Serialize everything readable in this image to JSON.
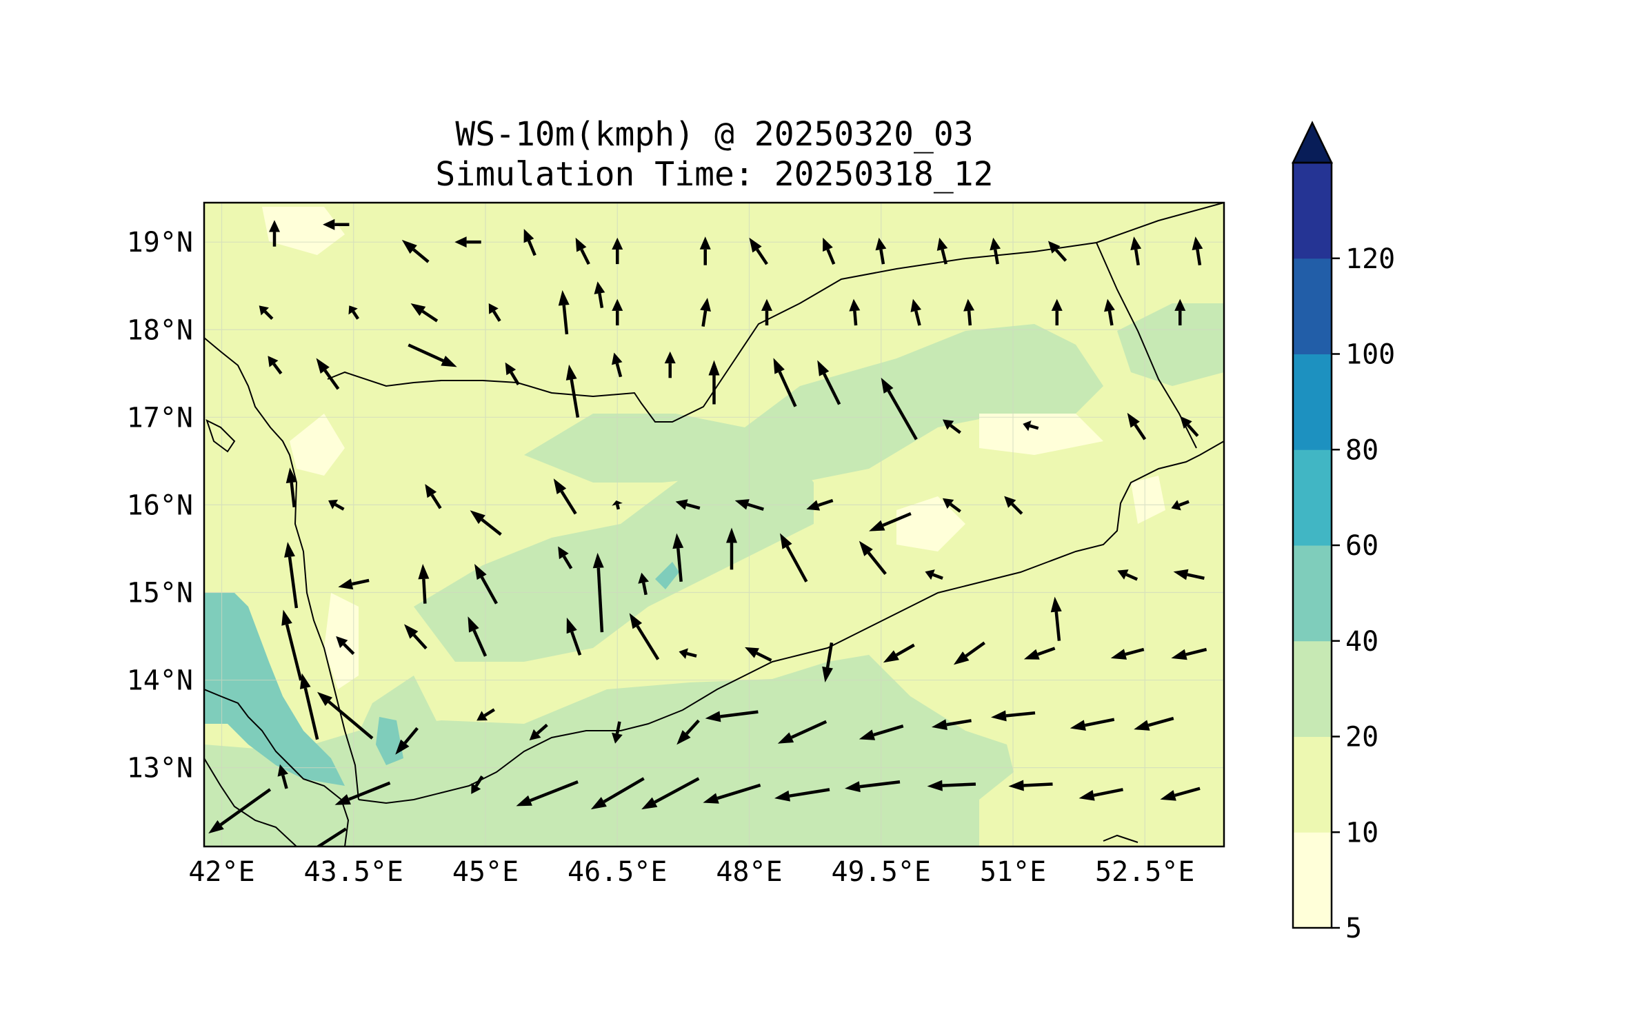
{
  "title": {
    "line1": "WS-10m(kmph) @ 20250320_03",
    "line2": "Simulation Time: 20250318_12"
  },
  "map": {
    "lon_range": [
      41.8,
      53.4
    ],
    "lat_range": [
      12.1,
      19.45
    ],
    "lon_ticks": [
      {
        "value": 42.0,
        "label": "42°E"
      },
      {
        "value": 43.5,
        "label": "43.5°E"
      },
      {
        "value": 45.0,
        "label": "45°E"
      },
      {
        "value": 46.5,
        "label": "46.5°E"
      },
      {
        "value": 48.0,
        "label": "48°E"
      },
      {
        "value": 49.5,
        "label": "49.5°E"
      },
      {
        "value": 51.0,
        "label": "51°E"
      },
      {
        "value": 52.5,
        "label": "52.5°E"
      }
    ],
    "lat_ticks": [
      {
        "value": 19,
        "label": "19°N"
      },
      {
        "value": 18,
        "label": "18°N"
      },
      {
        "value": 17,
        "label": "17°N"
      },
      {
        "value": 16,
        "label": "16°N"
      },
      {
        "value": 15,
        "label": "15°N"
      },
      {
        "value": 14,
        "label": "14°N"
      },
      {
        "value": 13,
        "label": "13°N"
      }
    ],
    "wind_vectors_kmph": [
      [
        42.6,
        19.1,
        0,
        12
      ],
      [
        43.3,
        19.2,
        -12,
        0
      ],
      [
        44.2,
        18.9,
        -12,
        10
      ],
      [
        44.8,
        19.0,
        -12,
        0
      ],
      [
        45.5,
        19.0,
        -5,
        12
      ],
      [
        46.1,
        18.9,
        -6,
        12
      ],
      [
        46.5,
        18.9,
        0,
        12
      ],
      [
        47.5,
        18.9,
        0,
        13
      ],
      [
        48.1,
        18.9,
        -8,
        12
      ],
      [
        48.9,
        18.9,
        -5,
        12
      ],
      [
        49.5,
        18.9,
        -2,
        12
      ],
      [
        50.2,
        18.9,
        -3,
        12
      ],
      [
        50.8,
        18.9,
        -2,
        12
      ],
      [
        51.5,
        18.9,
        -8,
        9
      ],
      [
        52.4,
        18.9,
        -2,
        13
      ],
      [
        53.1,
        18.9,
        -2,
        13
      ],
      [
        42.5,
        18.2,
        -6,
        6
      ],
      [
        43.5,
        18.2,
        -4,
        6
      ],
      [
        44.3,
        18.2,
        -12,
        8
      ],
      [
        45.1,
        18.2,
        -5,
        8
      ],
      [
        45.9,
        18.2,
        -2,
        20
      ],
      [
        46.3,
        18.4,
        -2,
        12
      ],
      [
        46.5,
        18.2,
        0,
        12
      ],
      [
        47.5,
        18.2,
        2,
        13
      ],
      [
        48.2,
        18.2,
        0,
        12
      ],
      [
        49.2,
        18.2,
        -1,
        12
      ],
      [
        49.9,
        18.2,
        -3,
        12
      ],
      [
        50.5,
        18.2,
        -1,
        12
      ],
      [
        51.5,
        18.2,
        0,
        12
      ],
      [
        52.1,
        18.2,
        -2,
        12
      ],
      [
        52.9,
        18.2,
        0,
        12
      ],
      [
        42.6,
        17.6,
        -6,
        8
      ],
      [
        43.2,
        17.5,
        -10,
        14
      ],
      [
        44.4,
        17.7,
        22,
        -10
      ],
      [
        45.3,
        17.5,
        -6,
        10
      ],
      [
        46.0,
        17.3,
        -4,
        24
      ],
      [
        46.5,
        17.6,
        -3,
        11
      ],
      [
        47.1,
        17.6,
        0,
        12
      ],
      [
        47.6,
        17.4,
        0,
        20
      ],
      [
        48.4,
        17.4,
        -10,
        22
      ],
      [
        48.9,
        17.4,
        -10,
        20
      ],
      [
        49.7,
        17.1,
        -16,
        28
      ],
      [
        50.3,
        16.9,
        -8,
        6
      ],
      [
        51.2,
        16.9,
        -7,
        2
      ],
      [
        52.4,
        16.9,
        -8,
        12
      ],
      [
        53.0,
        16.9,
        -8,
        9
      ],
      [
        42.8,
        16.2,
        -2,
        18
      ],
      [
        43.3,
        16.0,
        -7,
        4
      ],
      [
        44.4,
        16.1,
        -7,
        11
      ],
      [
        45.0,
        15.8,
        -14,
        11
      ],
      [
        45.9,
        16.1,
        -10,
        16
      ],
      [
        46.5,
        16.0,
        -1,
        4
      ],
      [
        47.3,
        16.0,
        -11,
        3
      ],
      [
        48.0,
        16.0,
        -13,
        4
      ],
      [
        48.8,
        16.0,
        -12,
        -4
      ],
      [
        49.6,
        15.8,
        -19,
        -8
      ],
      [
        50.3,
        16.0,
        -8,
        6
      ],
      [
        51.0,
        16.0,
        -8,
        8
      ],
      [
        52.9,
        16.0,
        -8,
        -3
      ],
      [
        42.8,
        15.2,
        -4,
        30
      ],
      [
        43.5,
        15.1,
        -14,
        -3
      ],
      [
        44.3,
        15.1,
        -1,
        18
      ],
      [
        45.0,
        15.1,
        -10,
        18
      ],
      [
        45.9,
        15.4,
        -6,
        10
      ],
      [
        46.3,
        15.0,
        -2,
        36
      ],
      [
        46.8,
        15.1,
        -2,
        10
      ],
      [
        47.2,
        15.4,
        -2,
        22
      ],
      [
        47.8,
        15.5,
        0,
        19
      ],
      [
        48.5,
        15.4,
        -12,
        22
      ],
      [
        49.4,
        15.4,
        -12,
        15
      ],
      [
        50.1,
        15.2,
        -8,
        3
      ],
      [
        51.5,
        14.7,
        -2,
        20
      ],
      [
        52.3,
        15.2,
        -9,
        4
      ],
      [
        53.0,
        15.2,
        -14,
        3
      ],
      [
        42.8,
        14.4,
        -8,
        32
      ],
      [
        43.4,
        14.4,
        -8,
        8
      ],
      [
        44.2,
        14.5,
        -10,
        11
      ],
      [
        44.9,
        14.5,
        -8,
        18
      ],
      [
        46.0,
        14.5,
        -6,
        17
      ],
      [
        46.8,
        14.5,
        -13,
        21
      ],
      [
        47.3,
        14.3,
        -8,
        2
      ],
      [
        48.1,
        14.3,
        -12,
        6
      ],
      [
        48.9,
        14.2,
        -3,
        -18
      ],
      [
        49.7,
        14.3,
        -14,
        -8
      ],
      [
        50.5,
        14.3,
        -14,
        -10
      ],
      [
        51.3,
        14.3,
        -14,
        -5
      ],
      [
        52.3,
        14.3,
        -15,
        -4
      ],
      [
        53.0,
        14.3,
        -16,
        -4
      ],
      [
        43.0,
        13.7,
        -7,
        30
      ],
      [
        43.4,
        13.6,
        -25,
        21
      ],
      [
        44.1,
        13.3,
        -10,
        -12
      ],
      [
        45.0,
        13.6,
        -8,
        -5
      ],
      [
        45.6,
        13.4,
        -8,
        -7
      ],
      [
        46.5,
        13.4,
        -2,
        -10
      ],
      [
        47.3,
        13.4,
        -10,
        -11
      ],
      [
        47.8,
        13.6,
        -24,
        -3
      ],
      [
        48.6,
        13.4,
        -22,
        -10
      ],
      [
        49.5,
        13.4,
        -20,
        -6
      ],
      [
        50.3,
        13.5,
        -18,
        -3
      ],
      [
        51.0,
        13.6,
        -20,
        -2
      ],
      [
        51.9,
        13.5,
        -20,
        -4
      ],
      [
        52.6,
        13.5,
        -18,
        -5
      ],
      [
        42.7,
        12.9,
        -3,
        11
      ],
      [
        42.2,
        12.5,
        -28,
        -20
      ],
      [
        43.1,
        12.1,
        -25,
        -16
      ],
      [
        43.6,
        12.7,
        -25,
        -10
      ],
      [
        44.9,
        12.8,
        -5,
        -8
      ],
      [
        45.7,
        12.7,
        -28,
        -11
      ],
      [
        46.5,
        12.7,
        -24,
        -14
      ],
      [
        47.1,
        12.7,
        -26,
        -14
      ],
      [
        47.8,
        12.7,
        -26,
        -8
      ],
      [
        48.6,
        12.7,
        -25,
        -4
      ],
      [
        49.4,
        12.8,
        -25,
        -3
      ],
      [
        50.3,
        12.8,
        -22,
        -1
      ],
      [
        51.2,
        12.8,
        -20,
        -1
      ],
      [
        52.0,
        12.7,
        -20,
        -4
      ],
      [
        52.9,
        12.7,
        -18,
        -5
      ]
    ]
  },
  "colorbar": {
    "levels": [
      "5",
      "10",
      "20",
      "40",
      "60",
      "80",
      "100",
      "120"
    ],
    "colors": [
      "#ffffd9",
      "#edf8b1",
      "#c7e9b4",
      "#7fcdbb",
      "#41b6c4",
      "#1d91c0",
      "#225ea8",
      "#253494"
    ],
    "extend_color": "#081d58"
  }
}
